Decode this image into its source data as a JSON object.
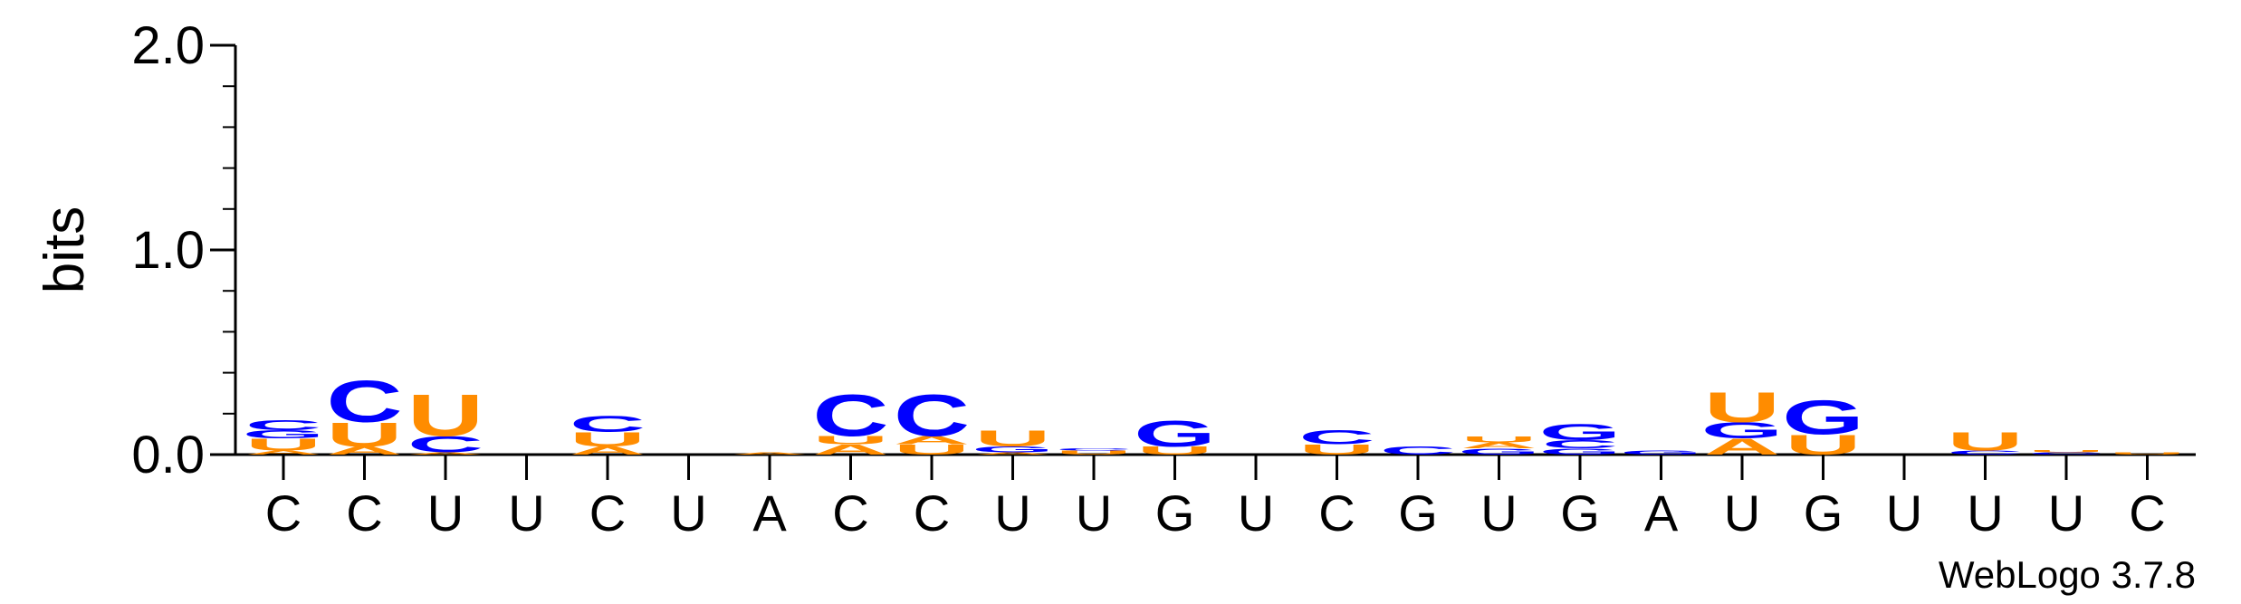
{
  "chart_data": {
    "type": "sequence-logo",
    "ylabel": "bits",
    "ylim": [
      0,
      2.0
    ],
    "y_ticks": [
      "0.0",
      "1.0",
      "2.0"
    ],
    "y_tick_values": [
      0,
      1.0,
      2.0
    ],
    "consensus": [
      "C",
      "C",
      "U",
      "U",
      "C",
      "U",
      "A",
      "C",
      "C",
      "U",
      "U",
      "G",
      "U",
      "C",
      "G",
      "U",
      "G",
      "A",
      "U",
      "G",
      "U",
      "U",
      "U",
      "C"
    ],
    "credit": "WebLogo 3.7.8",
    "colors": {
      "C": "#0000ff",
      "G": "#0000ff",
      "A": "#ff8c00",
      "U": "#ff8c00"
    },
    "positions": [
      [
        {
          "l": "A",
          "h": 0.02
        },
        {
          "l": "U",
          "h": 0.06
        },
        {
          "l": "G",
          "h": 0.04
        },
        {
          "l": "C",
          "h": 0.05
        }
      ],
      [
        {
          "l": "A",
          "h": 0.04
        },
        {
          "l": "U",
          "h": 0.12
        },
        {
          "l": "C",
          "h": 0.21
        }
      ],
      [
        {
          "l": "A",
          "h": 0.01
        },
        {
          "l": "C",
          "h": 0.08
        },
        {
          "l": "U",
          "h": 0.21
        }
      ],
      [],
      [
        {
          "l": "A",
          "h": 0.04
        },
        {
          "l": "U",
          "h": 0.07
        },
        {
          "l": "C",
          "h": 0.08
        }
      ],
      [],
      [
        {
          "l": "A",
          "h": 0.01
        }
      ],
      [
        {
          "l": "A",
          "h": 0.05
        },
        {
          "l": "U",
          "h": 0.04
        },
        {
          "l": "C",
          "h": 0.21
        }
      ],
      [
        {
          "l": "U",
          "h": 0.05
        },
        {
          "l": "A",
          "h": 0.04
        },
        {
          "l": "C",
          "h": 0.21
        }
      ],
      [
        {
          "l": "A",
          "h": 0.01
        },
        {
          "l": "G",
          "h": 0.03
        },
        {
          "l": "U",
          "h": 0.08
        }
      ],
      [
        {
          "l": "U",
          "h": 0.02
        },
        {
          "l": "C",
          "h": 0.01
        }
      ],
      [
        {
          "l": "U",
          "h": 0.04
        },
        {
          "l": "G",
          "h": 0.13
        }
      ],
      [],
      [
        {
          "l": "U",
          "h": 0.05
        },
        {
          "l": "C",
          "h": 0.07
        }
      ],
      [
        {
          "l": "C",
          "h": 0.04
        }
      ],
      [
        {
          "l": "G",
          "h": 0.03
        },
        {
          "l": "A",
          "h": 0.03
        },
        {
          "l": "U",
          "h": 0.03
        }
      ],
      [
        {
          "l": "G",
          "h": 0.03
        },
        {
          "l": "C",
          "h": 0.04
        },
        {
          "l": "G",
          "h": 0.08
        }
      ],
      [
        {
          "l": "G",
          "h": 0.02
        }
      ],
      [
        {
          "l": "A",
          "h": 0.08
        },
        {
          "l": "G",
          "h": 0.08
        },
        {
          "l": "U",
          "h": 0.15
        }
      ],
      [
        {
          "l": "U",
          "h": 0.1
        },
        {
          "l": "G",
          "h": 0.17
        }
      ],
      [],
      [
        {
          "l": "C",
          "h": 0.02
        },
        {
          "l": "U",
          "h": 0.09
        }
      ],
      [
        {
          "l": "C",
          "h": 0.01
        },
        {
          "l": "U",
          "h": 0.01
        }
      ],
      [
        {
          "l": "U",
          "h": 0.01
        }
      ]
    ]
  }
}
